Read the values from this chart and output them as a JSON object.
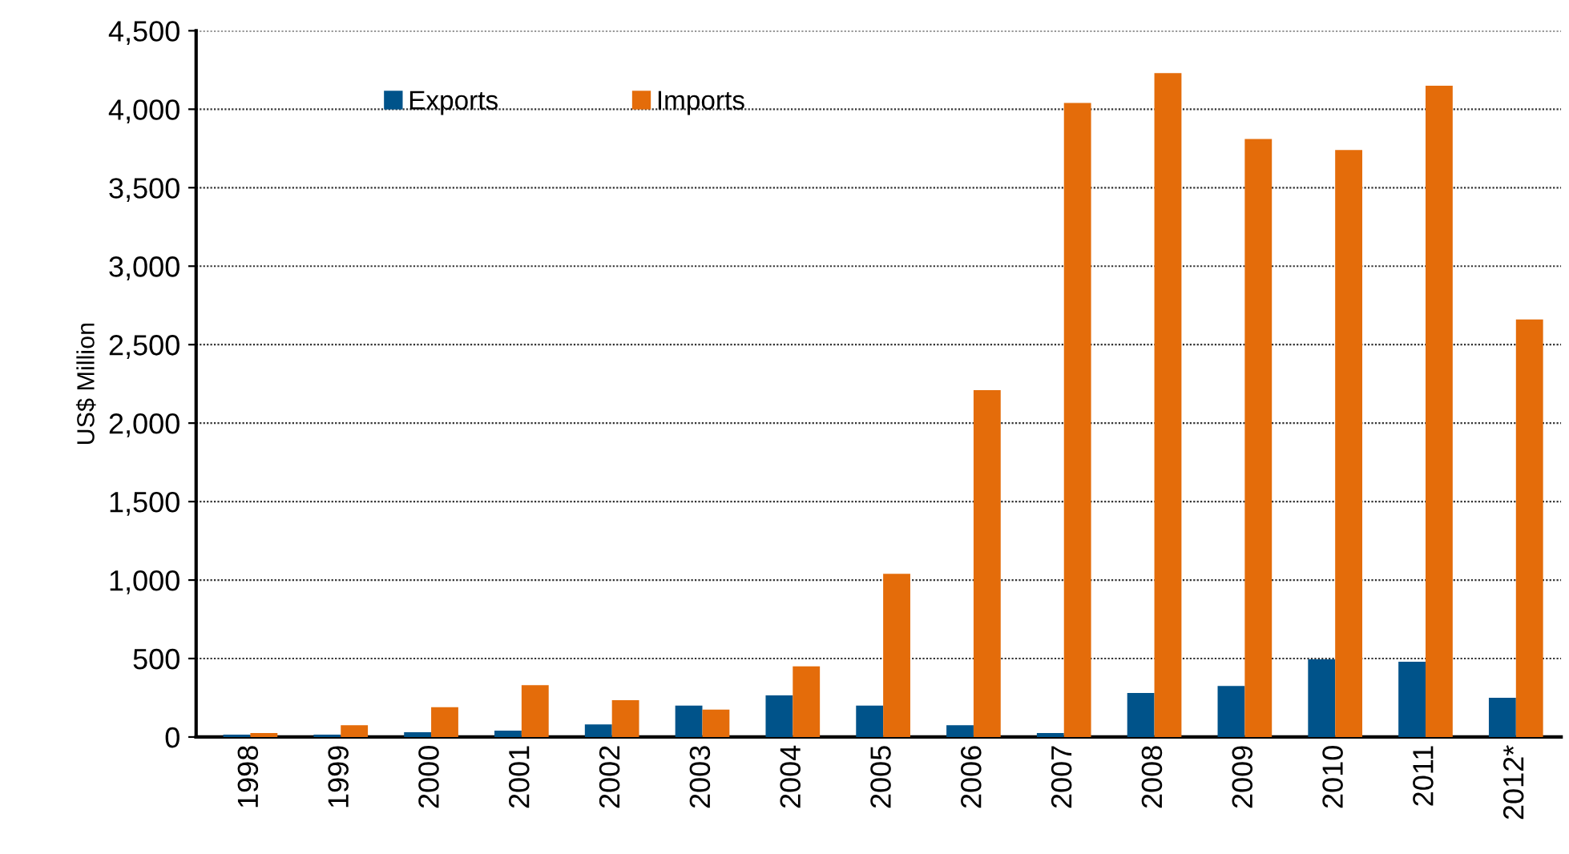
{
  "chart_data": {
    "type": "bar",
    "ylabel": "US$ Million",
    "categories": [
      "1998",
      "1999",
      "2000",
      "2001",
      "2002",
      "2003",
      "2004",
      "2005",
      "2006",
      "2007",
      "2008",
      "2009",
      "2010",
      "2011",
      "2012*"
    ],
    "series": [
      {
        "name": "Exports",
        "color": "#00538a",
        "values": [
          15,
          15,
          30,
          40,
          80,
          200,
          265,
          200,
          75,
          25,
          280,
          325,
          495,
          480,
          250
        ]
      },
      {
        "name": "Imports",
        "color": "#e46c0a",
        "values": [
          25,
          75,
          190,
          330,
          235,
          175,
          450,
          1040,
          2210,
          4040,
          4230,
          3810,
          3740,
          4150,
          2660
        ]
      }
    ],
    "ylim": [
      0,
      4500
    ],
    "yticks": [
      0,
      {
        "value": 500,
        "label": "500"
      },
      {
        "value": 1000,
        "label": "1,000"
      },
      {
        "value": 1500,
        "label": "1,500"
      },
      {
        "value": 2000,
        "label": "2,000"
      },
      {
        "value": 2500,
        "label": "2,500"
      },
      {
        "value": 3000,
        "label": "3,000"
      },
      {
        "value": 3500,
        "label": "3,500"
      },
      {
        "value": 4000,
        "label": "4,000"
      },
      {
        "value": 4500,
        "label": "4,500"
      }
    ],
    "grid": "y",
    "legend": "top left"
  }
}
